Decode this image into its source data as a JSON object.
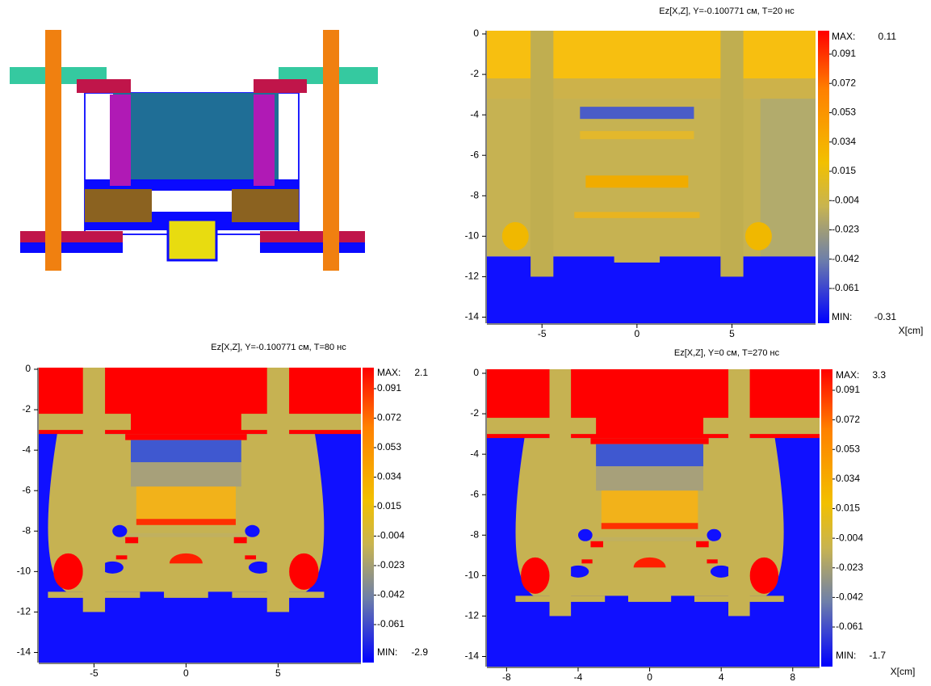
{
  "panels": [
    {
      "title": "Ez[X,Z], Y=-0.100771 см, T=20 нс",
      "xlabel": "X[cm]",
      "xticks": [
        -5,
        0,
        5
      ],
      "yticks": [
        0,
        -2,
        -4,
        -6,
        -8,
        -10,
        -12,
        -14
      ],
      "xlim": [
        -7.9,
        9.4
      ],
      "ylim": [
        0.16,
        -14.3
      ],
      "colorbar": {
        "max_label": "MAX:",
        "max": 0.11,
        "labels": [
          0.091,
          0.072,
          0.053,
          0.034,
          0.015,
          -0.004,
          -0.023,
          -0.042,
          -0.061
        ],
        "min_label": "MIN:",
        "min": -0.31
      }
    },
    {
      "title": "Ez[X,Z], Y=-0.100771 см, T=80 нс",
      "xticks": [
        -5,
        0,
        5
      ],
      "yticks": [
        0,
        -2,
        -4,
        -6,
        -8,
        -10,
        -12,
        -14
      ],
      "xlim": [
        -8.0,
        9.5
      ],
      "ylim": [
        0.08,
        -14.5
      ],
      "colorbar": {
        "max_label": "MAX:",
        "max": 2.1,
        "labels": [
          0.091,
          0.072,
          0.053,
          0.034,
          0.015,
          -0.004,
          -0.023,
          -0.042,
          -0.061
        ],
        "min_label": "MIN:",
        "min": -2.9
      }
    },
    {
      "title": "Ez[X,Z], Y=0 см, T=270 нс",
      "xlabel": "X[cm]",
      "xticks": [
        -8,
        -4,
        0,
        4,
        8
      ],
      "yticks": [
        0,
        -2,
        -4,
        -6,
        -8,
        -10,
        -12,
        -14
      ],
      "xlim": [
        -9.1,
        9.5
      ],
      "ylim": [
        0.2,
        -14.5
      ],
      "colorbar": {
        "max_label": "MAX:",
        "max": 3.3,
        "labels": [
          0.091,
          0.072,
          0.053,
          0.034,
          0.015,
          -0.004,
          -0.023,
          -0.042,
          -0.061
        ],
        "min_label": "MIN:",
        "min": -1.7
      }
    }
  ]
}
